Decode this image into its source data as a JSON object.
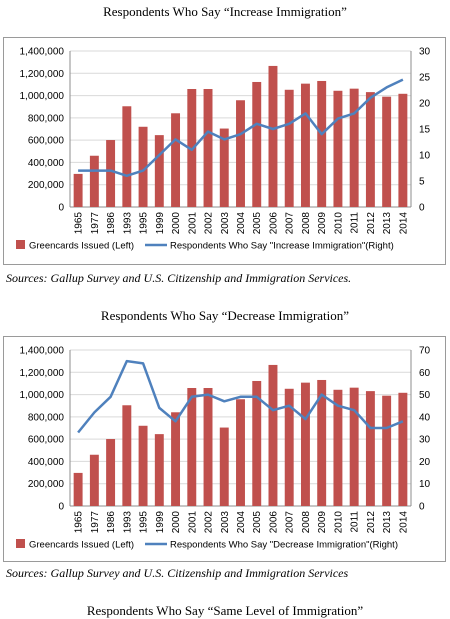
{
  "titles": {
    "chart1": "Respondents Who Say “Increase Immigration”",
    "chart2": "Respondents Who Say “Decrease Immigration”",
    "chart3": "Respondents Who Say “Same Level of Immigration”"
  },
  "sources": {
    "source1": "Sources: Gallup Survey and U.S. Citizenship and Immigration Services.",
    "source2": "Sources: Gallup Survey and U.S. Citizenship and Immigration Services"
  },
  "colors": {
    "bars": "#c0504d",
    "line": "#4f81bd",
    "grid": "#d9d9d9"
  },
  "chart_data": [
    {
      "type": "bar",
      "title": "Respondents Who Say “Increase Immigration”",
      "categories": [
        "1965",
        "1977",
        "1986",
        "1993",
        "1995",
        "1999",
        "2000",
        "2001",
        "2002",
        "2003",
        "2004",
        "2005",
        "2006",
        "2007",
        "2008",
        "2009",
        "2010",
        "2011",
        "2012",
        "2013",
        "2014"
      ],
      "series": [
        {
          "name": "Greencards Issued (Left)",
          "type": "bar",
          "axis": "left",
          "values": [
            297000,
            460000,
            601000,
            904000,
            720000,
            645000,
            841000,
            1059000,
            1059000,
            704000,
            958000,
            1122000,
            1266000,
            1052000,
            1107000,
            1131000,
            1043000,
            1062000,
            1031000,
            990000,
            1016000
          ]
        },
        {
          "name": "Respondents Who Say \"Increase Immigration\"(Right)",
          "type": "line",
          "axis": "right",
          "values": [
            7,
            7,
            7,
            6,
            7,
            10,
            13,
            11,
            14.5,
            13,
            14,
            16,
            15,
            16,
            18,
            14,
            17,
            18,
            21,
            23,
            24.5
          ]
        }
      ],
      "ylim_left": [
        0,
        1400000
      ],
      "ylim_right": [
        0,
        30
      ],
      "yticks_left": [
        "0",
        "200,000",
        "400,000",
        "600,000",
        "800,000",
        "1,000,000",
        "1,200,000",
        "1,400,000"
      ],
      "yticks_right": [
        "0",
        "5",
        "10",
        "15",
        "20",
        "25",
        "30"
      ],
      "grid": true,
      "legend": "bottom"
    },
    {
      "type": "bar",
      "title": "Respondents Who Say “Decrease Immigration”",
      "categories": [
        "1965",
        "1977",
        "1986",
        "1993",
        "1995",
        "1999",
        "2000",
        "2001",
        "2002",
        "2003",
        "2004",
        "2005",
        "2006",
        "2007",
        "2008",
        "2009",
        "2010",
        "2011",
        "2012",
        "2013",
        "2014"
      ],
      "series": [
        {
          "name": "Greencards Issued (Left)",
          "type": "bar",
          "axis": "left",
          "values": [
            297000,
            460000,
            601000,
            904000,
            720000,
            645000,
            841000,
            1059000,
            1059000,
            704000,
            958000,
            1122000,
            1266000,
            1052000,
            1107000,
            1131000,
            1043000,
            1062000,
            1031000,
            990000,
            1016000
          ]
        },
        {
          "name": "Respondents Who Say \"Decrease Immigration\"(Right)",
          "type": "line",
          "axis": "right",
          "values": [
            33,
            42,
            49,
            65,
            64,
            44,
            38,
            49,
            50,
            47,
            49,
            49,
            43,
            45,
            39,
            50,
            45,
            43,
            35,
            35,
            38
          ]
        }
      ],
      "ylim_left": [
        0,
        1400000
      ],
      "ylim_right": [
        0,
        70
      ],
      "yticks_left": [
        "0",
        "200,000",
        "400,000",
        "600,000",
        "800,000",
        "1,000,000",
        "1,200,000",
        "1,400,000"
      ],
      "yticks_right": [
        "0",
        "10",
        "20",
        "30",
        "40",
        "50",
        "60",
        "70"
      ],
      "grid": true,
      "legend": "bottom"
    }
  ]
}
